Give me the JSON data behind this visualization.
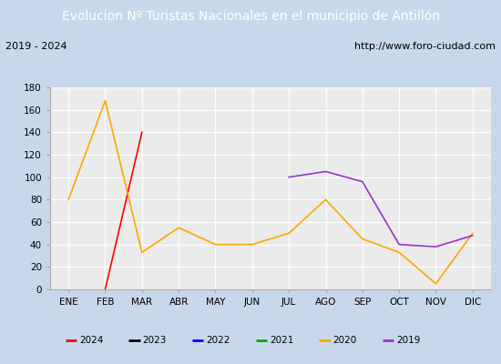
{
  "title": "Evolucion Nº Turistas Nacionales en el municipio de Antillón",
  "subtitle_left": "2019 - 2024",
  "subtitle_right": "http://www.foro-ciudad.com",
  "title_bg_color": "#4a90d9",
  "title_text_color": "#ffffff",
  "months": [
    "ENE",
    "FEB",
    "MAR",
    "ABR",
    "MAY",
    "JUN",
    "JUL",
    "AGO",
    "SEP",
    "OCT",
    "NOV",
    "DIC"
  ],
  "ylim": [
    0,
    180
  ],
  "yticks": [
    0,
    20,
    40,
    60,
    80,
    100,
    120,
    140,
    160,
    180
  ],
  "series": {
    "2024": {
      "color": "#ff0000",
      "data": [
        null,
        0,
        140,
        null,
        null,
        null,
        null,
        null,
        null,
        null,
        null,
        null
      ],
      "linewidth": 1.2
    },
    "2023": {
      "color": "#000000",
      "data": [
        null,
        null,
        null,
        null,
        null,
        null,
        null,
        null,
        null,
        null,
        null,
        null
      ],
      "linewidth": 1.2
    },
    "2022": {
      "color": "#0000ff",
      "data": [
        null,
        null,
        null,
        null,
        null,
        null,
        null,
        null,
        null,
        null,
        null,
        null
      ],
      "linewidth": 1.2
    },
    "2021": {
      "color": "#00aa00",
      "data": [
        null,
        null,
        null,
        null,
        null,
        null,
        null,
        null,
        null,
        null,
        null,
        null
      ],
      "linewidth": 1.2
    },
    "2020": {
      "color": "#ffa500",
      "data": [
        80,
        168,
        33,
        55,
        40,
        40,
        50,
        80,
        45,
        33,
        5,
        50
      ],
      "linewidth": 1.2
    },
    "2019": {
      "color": "#9932cc",
      "data": [
        null,
        null,
        null,
        null,
        null,
        null,
        100,
        105,
        96,
        40,
        38,
        48
      ],
      "linewidth": 1.2
    }
  },
  "legend_order": [
    "2024",
    "2023",
    "2022",
    "2021",
    "2020",
    "2019"
  ],
  "plot_bg_color": "#ebebeb",
  "grid_color": "#ffffff",
  "outer_bg_color": "#c8d8ea",
  "inner_bg_color": "#ffffff"
}
